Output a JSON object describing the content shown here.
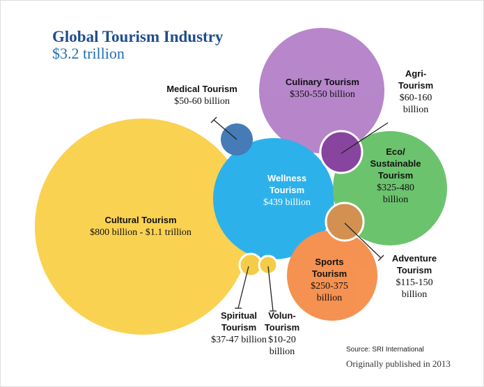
{
  "header": {
    "title": "Global Tourism Industry",
    "subtitle": "$3.2 trillion"
  },
  "nodes": [
    {
      "name": [
        "Cultural Tourism"
      ],
      "value": [
        "$800 billion - $1.1 trillion"
      ]
    },
    {
      "name": [
        "Wellness",
        "Tourism"
      ],
      "value": [
        "$439 billion"
      ]
    },
    {
      "name": [
        "Culinary Tourism"
      ],
      "value": [
        "$350-550 billion"
      ]
    },
    {
      "name": [
        "Medical Tourism"
      ],
      "value": [
        "$50-60 billion"
      ]
    },
    {
      "name": [
        "Agri-",
        "Tourism"
      ],
      "value": [
        "$60-160",
        "billion"
      ]
    },
    {
      "name": [
        "Eco/",
        "Sustainable",
        "Tourism"
      ],
      "value": [
        "$325-480",
        "billion"
      ]
    },
    {
      "name": [
        "Adventure",
        "Tourism"
      ],
      "value": [
        "$115-150",
        "billion"
      ]
    },
    {
      "name": [
        "Sports",
        "Tourism"
      ],
      "value": [
        "$250-375",
        "billion"
      ]
    },
    {
      "name": [
        "Spiritual",
        "Tourism"
      ],
      "value": [
        "$37-47 billion"
      ]
    },
    {
      "name": [
        "Volun-",
        "Tourism"
      ],
      "value": [
        "$10-20",
        "billion"
      ]
    }
  ],
  "footer": {
    "source": "Source: SRI International",
    "note": "Originally published in 2013"
  }
}
